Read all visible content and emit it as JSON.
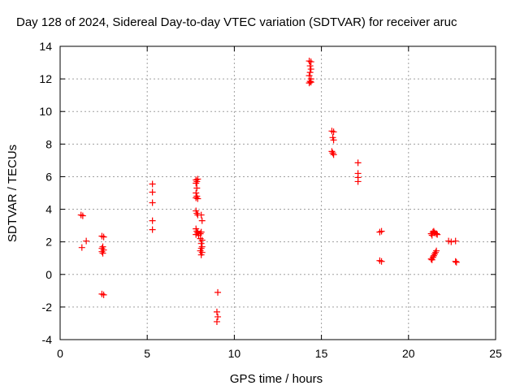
{
  "chart_data": {
    "type": "scatter",
    "title": "Day 128 of 2024, Sidereal Day-to-day VTEC variation (SDTVAR) for receiver aruc",
    "xlabel": "GPS time / hours",
    "ylabel": "SDTVAR / TECUs",
    "xlim": [
      0,
      25
    ],
    "ylim": [
      -4,
      14
    ],
    "xticks": [
      0,
      5,
      10,
      15,
      20,
      25
    ],
    "xtick_labels": [
      "0",
      "5",
      "10",
      "15",
      "20",
      "25"
    ],
    "yticks": [
      -4,
      -2,
      0,
      2,
      4,
      6,
      8,
      10,
      12,
      14
    ],
    "ytick_labels": [
      "-4",
      "-2",
      "0",
      "2",
      "4",
      "6",
      "8",
      "10",
      "12",
      "14"
    ],
    "grid": true,
    "marker": "+",
    "colors": {
      "marker": "#ff0000",
      "grid": "#a0a0a0",
      "axis": "#000000"
    },
    "series": [
      {
        "name": "SDTVAR",
        "points": [
          {
            "x": 1.2,
            "y": 3.65
          },
          {
            "x": 1.3,
            "y": 3.6
          },
          {
            "x": 1.25,
            "y": 1.65
          },
          {
            "x": 1.5,
            "y": 2.05
          },
          {
            "x": 2.4,
            "y": 2.35
          },
          {
            "x": 2.5,
            "y": 2.3
          },
          {
            "x": 2.45,
            "y": 1.7
          },
          {
            "x": 2.4,
            "y": 1.6
          },
          {
            "x": 2.5,
            "y": 1.5
          },
          {
            "x": 2.4,
            "y": 1.4
          },
          {
            "x": 2.45,
            "y": 1.3
          },
          {
            "x": 2.4,
            "y": -1.2
          },
          {
            "x": 2.5,
            "y": -1.25
          },
          {
            "x": 5.3,
            "y": 5.55
          },
          {
            "x": 5.3,
            "y": 5.05
          },
          {
            "x": 5.3,
            "y": 4.4
          },
          {
            "x": 5.3,
            "y": 3.3
          },
          {
            "x": 5.3,
            "y": 2.75
          },
          {
            "x": 7.8,
            "y": 5.8
          },
          {
            "x": 7.9,
            "y": 5.85
          },
          {
            "x": 7.85,
            "y": 5.7
          },
          {
            "x": 7.8,
            "y": 5.6
          },
          {
            "x": 7.85,
            "y": 5.3
          },
          {
            "x": 7.8,
            "y": 5.0
          },
          {
            "x": 7.85,
            "y": 4.8
          },
          {
            "x": 7.8,
            "y": 4.7
          },
          {
            "x": 7.9,
            "y": 4.65
          },
          {
            "x": 7.8,
            "y": 3.9
          },
          {
            "x": 7.85,
            "y": 3.75
          },
          {
            "x": 7.9,
            "y": 3.65
          },
          {
            "x": 7.8,
            "y": 2.8
          },
          {
            "x": 7.85,
            "y": 2.65
          },
          {
            "x": 7.9,
            "y": 2.55
          },
          {
            "x": 7.8,
            "y": 2.45
          },
          {
            "x": 7.95,
            "y": 2.4
          },
          {
            "x": 8.05,
            "y": 2.5
          },
          {
            "x": 8.1,
            "y": 3.65
          },
          {
            "x": 8.15,
            "y": 3.3
          },
          {
            "x": 8.1,
            "y": 2.6
          },
          {
            "x": 8.05,
            "y": 2.2
          },
          {
            "x": 8.15,
            "y": 2.1
          },
          {
            "x": 8.1,
            "y": 1.9
          },
          {
            "x": 8.15,
            "y": 1.7
          },
          {
            "x": 8.1,
            "y": 1.6
          },
          {
            "x": 8.05,
            "y": 1.45
          },
          {
            "x": 8.15,
            "y": 1.35
          },
          {
            "x": 8.1,
            "y": 1.2
          },
          {
            "x": 9.05,
            "y": -1.1
          },
          {
            "x": 9.0,
            "y": -2.3
          },
          {
            "x": 9.05,
            "y": -2.6
          },
          {
            "x": 9.0,
            "y": -2.9
          },
          {
            "x": 14.3,
            "y": 13.1
          },
          {
            "x": 14.4,
            "y": 13.05
          },
          {
            "x": 14.35,
            "y": 12.8
          },
          {
            "x": 14.4,
            "y": 12.6
          },
          {
            "x": 14.35,
            "y": 12.4
          },
          {
            "x": 14.3,
            "y": 12.2
          },
          {
            "x": 14.4,
            "y": 12.0
          },
          {
            "x": 14.35,
            "y": 11.85
          },
          {
            "x": 14.3,
            "y": 11.75
          },
          {
            "x": 14.4,
            "y": 11.8
          },
          {
            "x": 15.6,
            "y": 8.8
          },
          {
            "x": 15.7,
            "y": 8.75
          },
          {
            "x": 15.65,
            "y": 8.4
          },
          {
            "x": 15.7,
            "y": 8.25
          },
          {
            "x": 15.6,
            "y": 7.55
          },
          {
            "x": 15.65,
            "y": 7.45
          },
          {
            "x": 15.7,
            "y": 7.35
          },
          {
            "x": 17.1,
            "y": 6.85
          },
          {
            "x": 17.1,
            "y": 6.2
          },
          {
            "x": 17.1,
            "y": 5.95
          },
          {
            "x": 17.1,
            "y": 5.7
          },
          {
            "x": 18.35,
            "y": 2.6
          },
          {
            "x": 18.45,
            "y": 2.65
          },
          {
            "x": 18.35,
            "y": 0.85
          },
          {
            "x": 18.45,
            "y": 0.8
          },
          {
            "x": 21.3,
            "y": 2.5
          },
          {
            "x": 21.4,
            "y": 2.6
          },
          {
            "x": 21.45,
            "y": 2.65
          },
          {
            "x": 21.5,
            "y": 2.55
          },
          {
            "x": 21.6,
            "y": 2.5
          },
          {
            "x": 21.65,
            "y": 2.45
          },
          {
            "x": 21.35,
            "y": 2.4
          },
          {
            "x": 21.3,
            "y": 0.95
          },
          {
            "x": 21.35,
            "y": 0.9
          },
          {
            "x": 21.4,
            "y": 1.05
          },
          {
            "x": 21.45,
            "y": 1.15
          },
          {
            "x": 21.5,
            "y": 1.25
          },
          {
            "x": 21.55,
            "y": 1.35
          },
          {
            "x": 21.6,
            "y": 1.45
          },
          {
            "x": 22.3,
            "y": 2.05
          },
          {
            "x": 22.45,
            "y": 2.0
          },
          {
            "x": 22.7,
            "y": 2.05
          },
          {
            "x": 22.7,
            "y": 0.8
          },
          {
            "x": 22.75,
            "y": 0.75
          }
        ]
      }
    ]
  }
}
